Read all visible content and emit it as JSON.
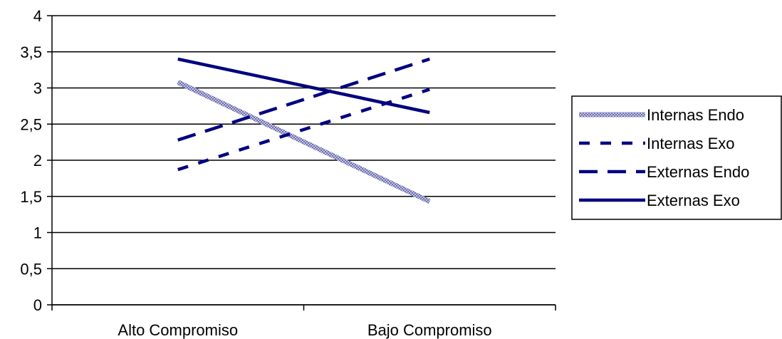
{
  "chart_data": {
    "type": "line",
    "title": "",
    "xlabel": "",
    "ylabel": "",
    "categories": [
      "Alto Compromiso",
      "Bajo Compromiso"
    ],
    "ylim": [
      0,
      4
    ],
    "yticks": [
      "0",
      "0,5",
      "1",
      "1,5",
      "2",
      "2,5",
      "3",
      "3,5",
      "4"
    ],
    "grid": "horizontal",
    "legend_position": "right",
    "series": [
      {
        "name": "Internas Endo",
        "values": [
          3.08,
          1.43
        ],
        "color": "#9a9ac8",
        "style": "textured"
      },
      {
        "name": "Internas Exo",
        "values": [
          1.87,
          2.98
        ],
        "color": "#000080",
        "style": "short-dash"
      },
      {
        "name": "Externas Endo",
        "values": [
          2.28,
          3.4
        ],
        "color": "#000080",
        "style": "long-dash"
      },
      {
        "name": "Externas Exo",
        "values": [
          3.4,
          2.66
        ],
        "color": "#000080",
        "style": "solid"
      }
    ]
  }
}
